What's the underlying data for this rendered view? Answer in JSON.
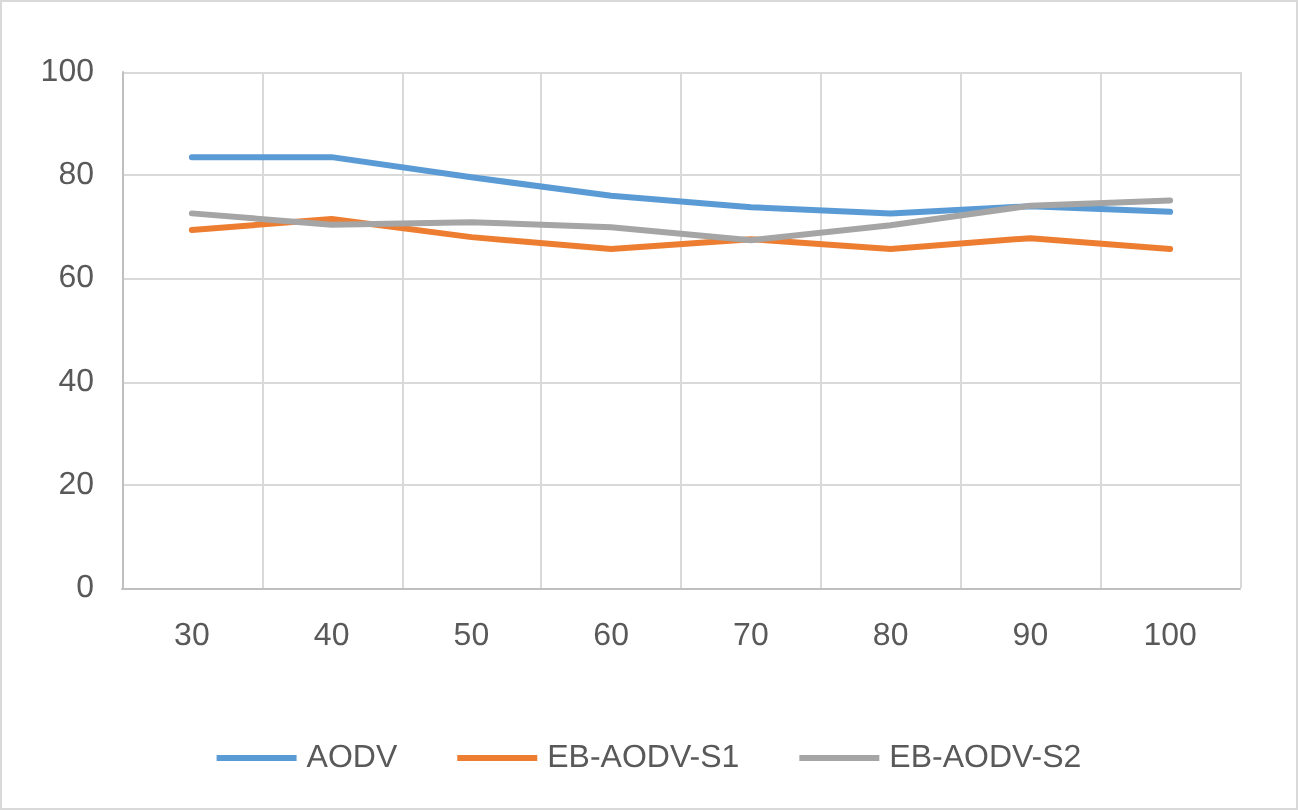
{
  "chart_data": {
    "type": "line",
    "categories": [
      "30",
      "40",
      "50",
      "60",
      "70",
      "80",
      "90",
      "100"
    ],
    "series": [
      {
        "name": "AODV",
        "color": "#5b9bd5",
        "values": [
          83.5,
          83.5,
          79.6,
          76,
          73.8,
          72.6,
          74,
          72.9
        ]
      },
      {
        "name": "EB-AODV-S1",
        "color": "#ed7d31",
        "values": [
          69.4,
          71.5,
          68,
          65.7,
          67.6,
          65.7,
          67.8,
          65.7
        ]
      },
      {
        "name": "EB-AODV-S2",
        "color": "#a5a5a5",
        "values": [
          72.6,
          70.4,
          70.9,
          69.9,
          67.4,
          70.3,
          74.1,
          75.1
        ]
      }
    ],
    "ylim": [
      0,
      100
    ],
    "yticks": [
      0,
      20,
      40,
      60,
      80,
      100
    ],
    "grid": true,
    "legend": "bottom",
    "marker": "none",
    "line_style": "solid"
  }
}
